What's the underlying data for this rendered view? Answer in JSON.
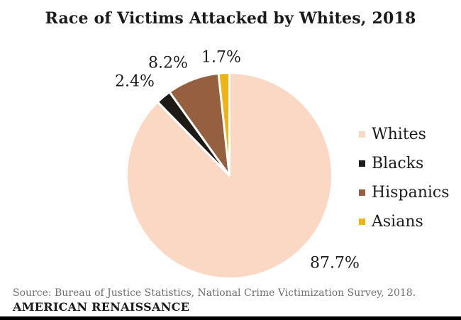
{
  "chart_data": {
    "type": "pie",
    "title": "Race of Victims Attacked by Whites, 2018",
    "series": [
      {
        "name": "Whites",
        "value": 87.7,
        "display": "87.7%",
        "color": "#FBD8C3"
      },
      {
        "name": "Blacks",
        "value": 2.4,
        "display": "2.4%",
        "color": "#1E1B17"
      },
      {
        "name": "Hispanics",
        "value": 8.2,
        "display": "8.2%",
        "color": "#965F3F"
      },
      {
        "name": "Asians",
        "value": 1.7,
        "display": "1.7%",
        "color": "#EFB315"
      }
    ],
    "start_angle_deg": 0,
    "direction": "clockwise",
    "legend_position": "right",
    "slice_border_color": "#FFFFFF",
    "data_labels_shown": true
  },
  "footer": {
    "source": "Source: Bureau of Justice Statistics, National Crime Victimization Survey, 2018.",
    "brand": "AMERICAN RENAISSANCE"
  }
}
